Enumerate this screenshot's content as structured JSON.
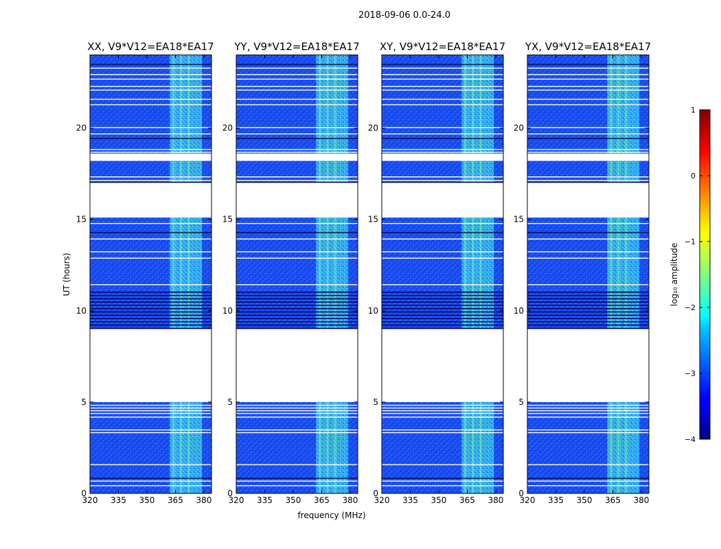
{
  "figure": {
    "suptitle": "2018-09-06 0.0-24.0"
  },
  "chart_data": {
    "type": "heatmap",
    "xlabel": "frequency (MHz)",
    "ylabel": "UT (hours)",
    "xlim": [
      320,
      384
    ],
    "ylim": [
      0,
      24
    ],
    "xticks": [
      320,
      335,
      350,
      365,
      380
    ],
    "yticks": [
      0,
      5,
      10,
      15,
      20
    ],
    "panels": [
      {
        "title": "XX, V9*V12=EA18*EA17"
      },
      {
        "title": "YY, V9*V12=EA18*EA17"
      },
      {
        "title": "XY, V9*V12=EA18*EA17"
      },
      {
        "title": "YX, V9*V12=EA18*EA17"
      }
    ],
    "data_segments_hours": [
      [
        0,
        5
      ],
      [
        9,
        15.1
      ],
      [
        17,
        18.2
      ],
      [
        18.6,
        24
      ]
    ],
    "rfi_band_mhz": [
      362,
      379
    ],
    "dense_flag_band_hours": [
      9,
      11.1
    ],
    "colorbar": {
      "label": "log₁₀ amplitude",
      "range": [
        -4,
        1
      ],
      "ticks": [
        1,
        0,
        -1,
        -2,
        -3,
        -4
      ],
      "tick_labels": [
        "1",
        "0",
        "−1",
        "−2",
        "−3",
        "−4"
      ],
      "colormap": "jet"
    }
  }
}
